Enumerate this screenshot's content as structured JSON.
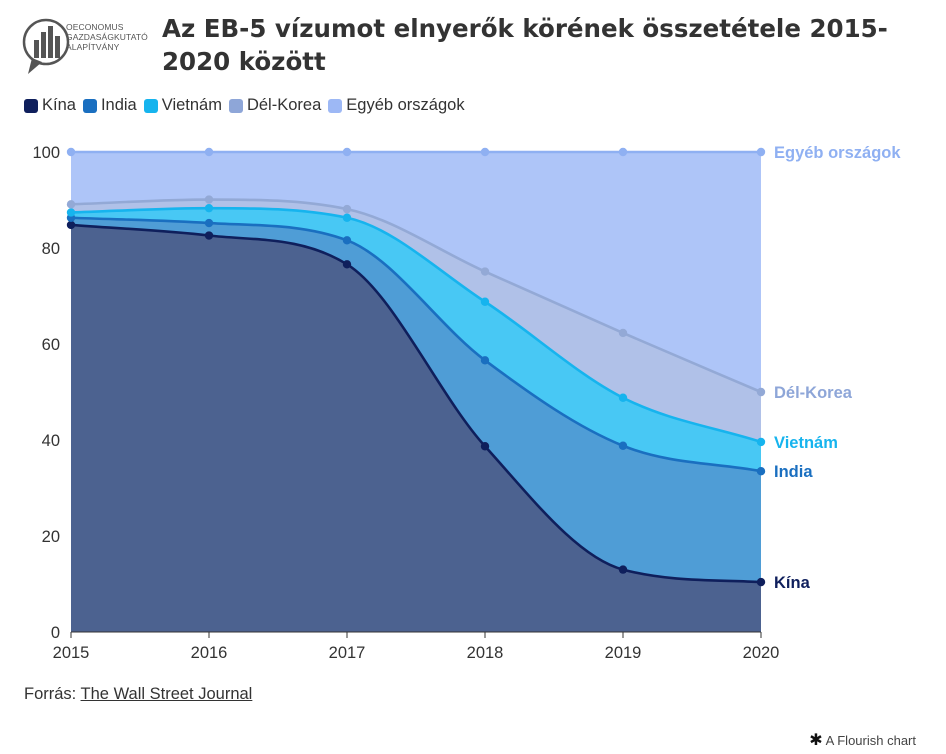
{
  "logo": {
    "lines": [
      "OECONOMUS",
      "GAZDASÁGKUTATÓ",
      "ALAPÍTVÁNY"
    ]
  },
  "title": "Az EB-5 vízumot elnyerők körének összetétele 2015-2020 között",
  "legend": [
    {
      "label": "Kína",
      "color": "#0f1f5c"
    },
    {
      "label": "India",
      "color": "#1a6fc0"
    },
    {
      "label": "Vietnám",
      "color": "#16b4ee"
    },
    {
      "label": "Dél-Korea",
      "color": "#8ea6d8"
    },
    {
      "label": "Egyéb országok",
      "color": "#9db8f5"
    }
  ],
  "chart_data": {
    "type": "area",
    "stacked": true,
    "x": [
      "2015",
      "2016",
      "2017",
      "2018",
      "2019",
      "2020"
    ],
    "yticks": [
      0,
      20,
      40,
      60,
      80,
      100
    ],
    "ylim": [
      0,
      100
    ],
    "series": [
      {
        "name": "Kína",
        "cumulative": [
          84.8,
          82.6,
          76.6,
          38.7,
          13.0,
          10.4
        ],
        "line": "#0f1f5c",
        "fill": "#4c6290",
        "label_color": "#0f1f5c"
      },
      {
        "name": "India",
        "cumulative": [
          86.3,
          85.2,
          81.6,
          56.6,
          38.8,
          33.5
        ],
        "line": "#1a6fc0",
        "fill": "#4f9dd6",
        "label_color": "#1a6fc0"
      },
      {
        "name": "Vietnám",
        "cumulative": [
          87.4,
          88.3,
          86.3,
          68.8,
          48.8,
          39.6
        ],
        "line": "#16b4ee",
        "fill": "#48c8f4",
        "label_color": "#16b4ee"
      },
      {
        "name": "Dél-Korea",
        "cumulative": [
          89.1,
          90.1,
          88.1,
          75.1,
          62.3,
          50.0
        ],
        "line": "#93a9d6",
        "fill": "#b0c1e8",
        "label_color": "#8ea6d8"
      },
      {
        "name": "Egyéb országok",
        "cumulative": [
          100,
          100,
          100,
          100,
          100,
          100
        ],
        "line": "#8fb0f2",
        "fill": "#aec5f8",
        "label_color": "#8fb0f2"
      }
    ]
  },
  "source": {
    "prefix": "Forrás: ",
    "link": "The Wall Street Journal"
  },
  "credit": "A Flourish chart"
}
